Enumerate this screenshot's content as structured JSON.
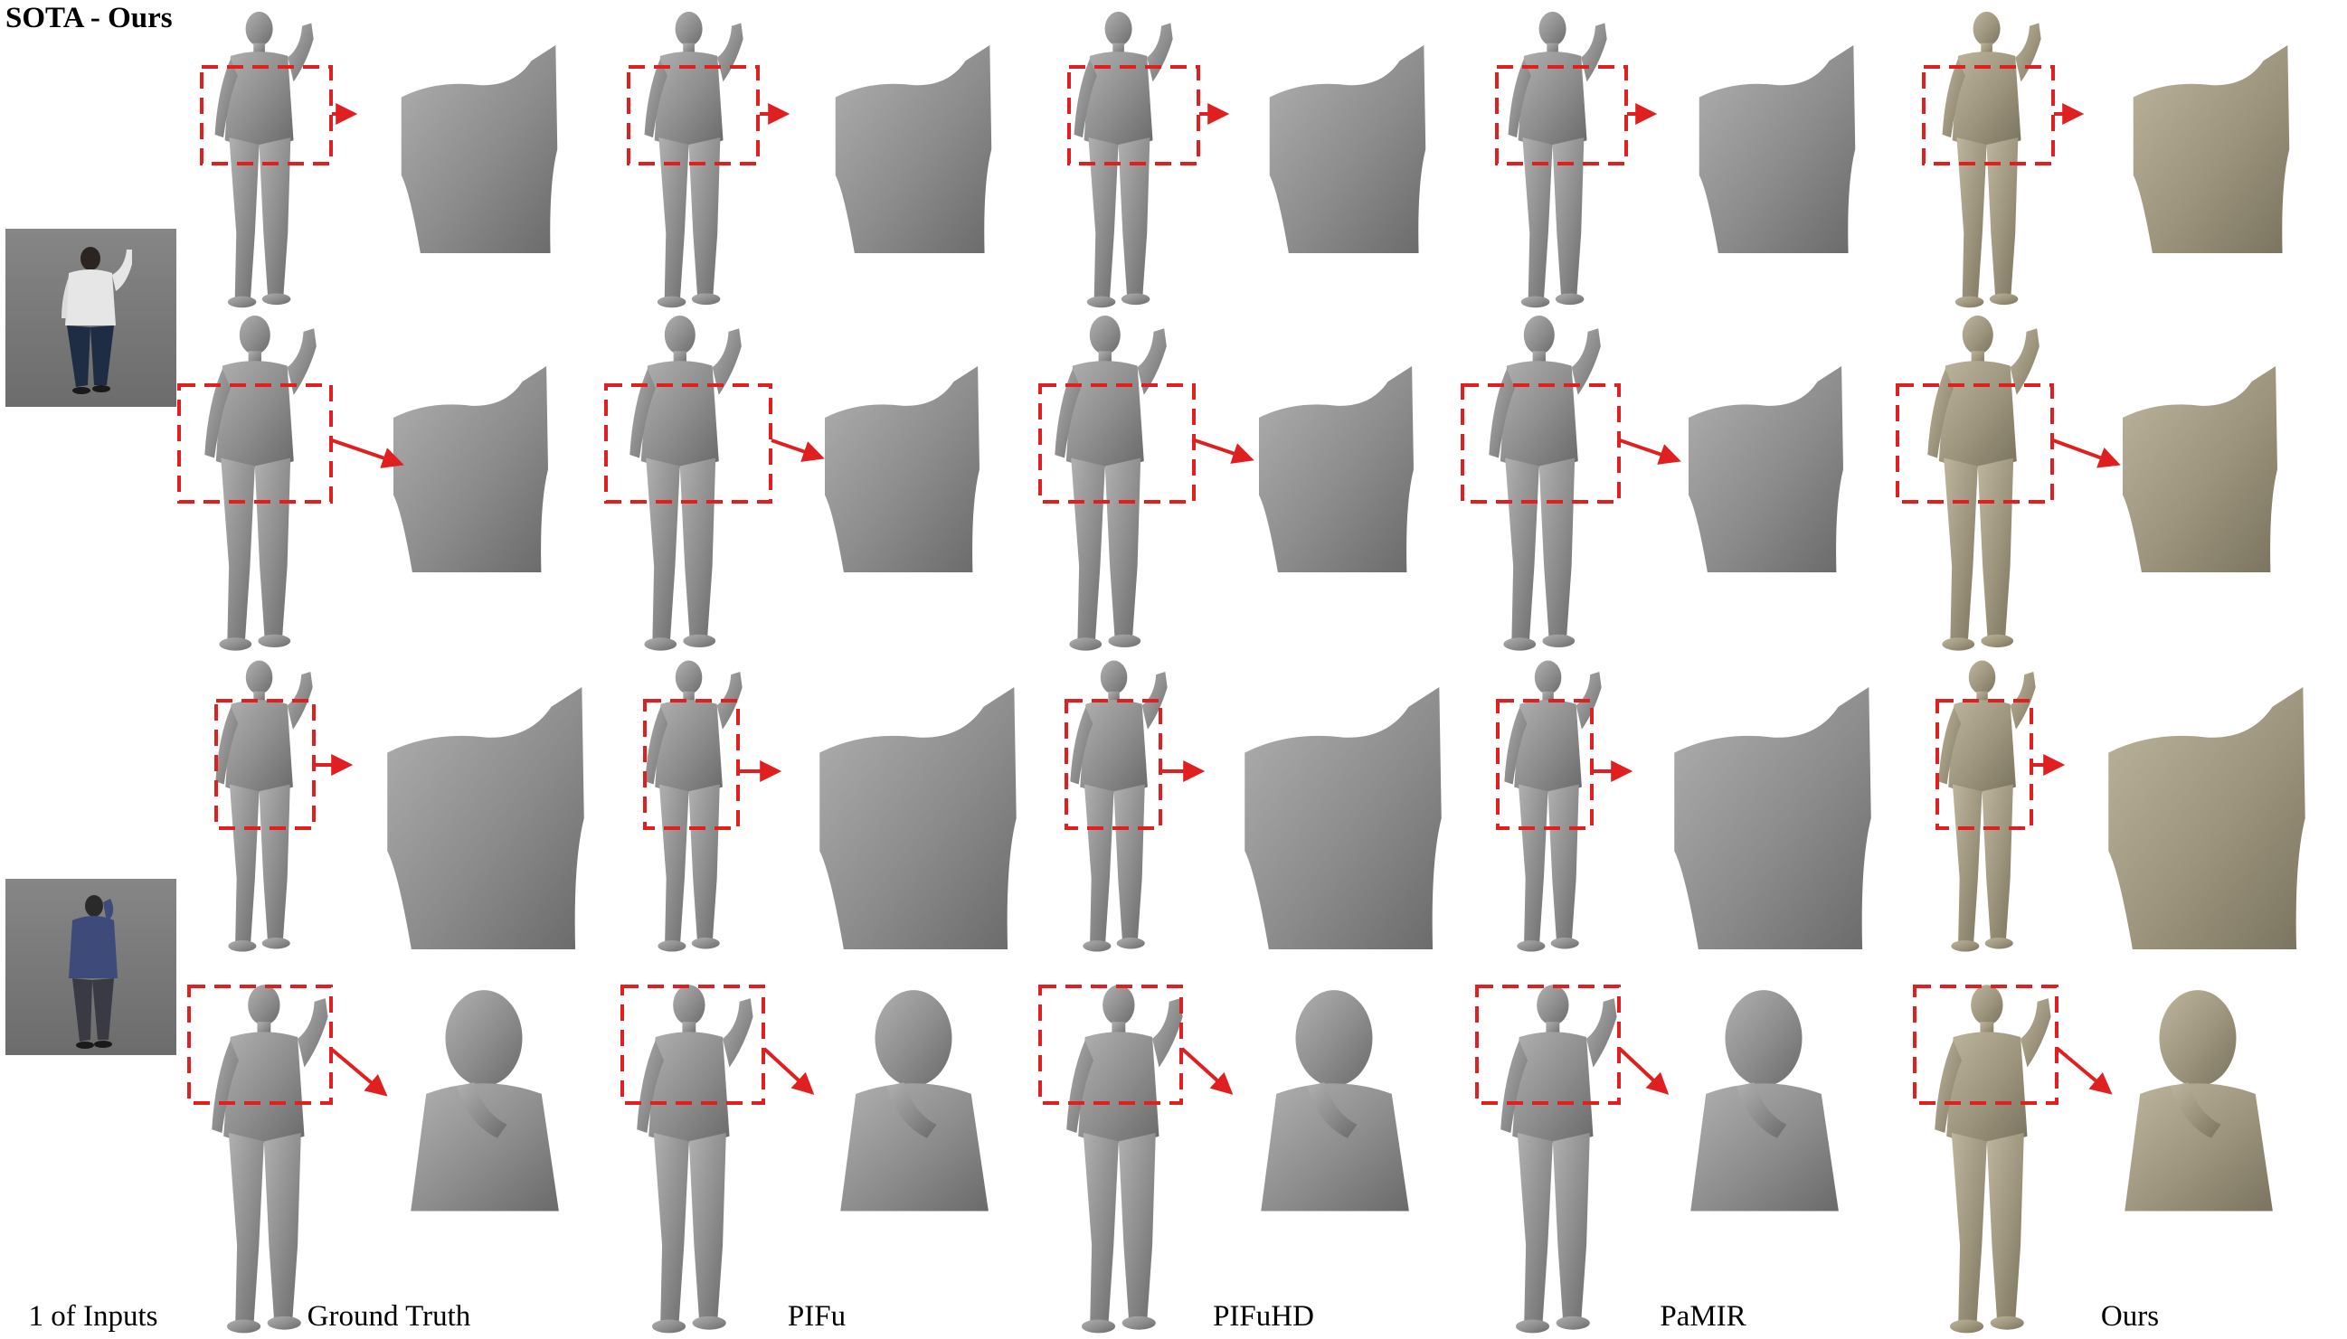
{
  "figure": {
    "title": "SOTA - Ours",
    "inputs_label": "1 of Inputs",
    "columns": [
      "Ground Truth",
      "PIFu",
      "PIFuHD",
      "PaMIR",
      "Ours"
    ],
    "rows": 4,
    "colors": {
      "gray_mesh": "#8a8a8a",
      "gray_mesh_light": "#a6a6a6",
      "gray_mesh_dark": "#6e6e6e",
      "ours_mesh": "#9f977f",
      "ours_mesh_light": "#b8b09a",
      "ours_mesh_dark": "#7f7864",
      "highlight": "#e02020",
      "photo_bg": "#7a7a7a"
    }
  }
}
